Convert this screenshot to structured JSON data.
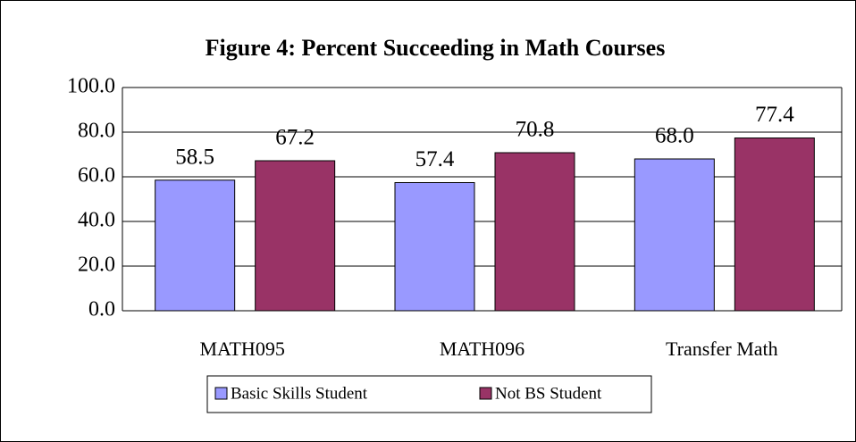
{
  "chart_data": {
    "type": "bar",
    "title": "Figure 4: Percent Succeeding in Math Courses",
    "categories": [
      "MATH095",
      "MATH096",
      "Transfer Math"
    ],
    "series": [
      {
        "name": "Basic Skills Student",
        "color": "#9999ff",
        "values": [
          58.5,
          57.4,
          68.0
        ],
        "value_labels": [
          "58.5",
          "57.4",
          "68.0"
        ]
      },
      {
        "name": "Not BS Student",
        "color": "#993366",
        "values": [
          67.2,
          70.8,
          77.4
        ],
        "value_labels": [
          "67.2",
          "70.8",
          "77.4"
        ]
      }
    ],
    "ylim": [
      0,
      100
    ],
    "yticks": [
      {
        "value": 0,
        "label": "0.0"
      },
      {
        "value": 20,
        "label": "20.0"
      },
      {
        "value": 40,
        "label": "40.0"
      },
      {
        "value": 60,
        "label": "60.0"
      },
      {
        "value": 80,
        "label": "80.0"
      },
      {
        "value": 100,
        "label": "100.0"
      }
    ],
    "grid": true,
    "legend": "bottom"
  }
}
